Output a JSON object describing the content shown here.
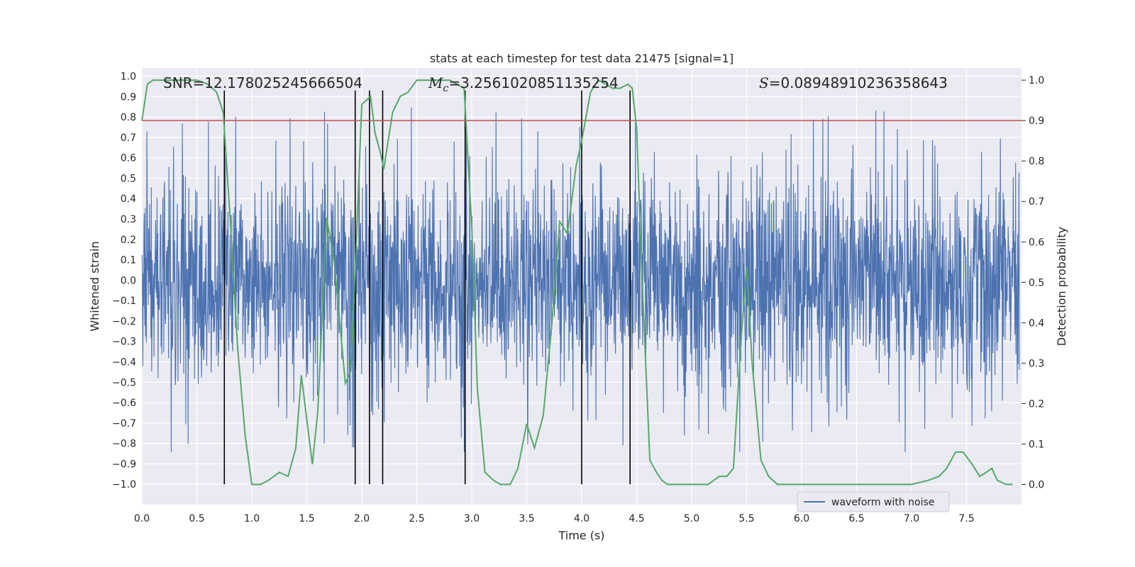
{
  "chart_data": {
    "type": "line",
    "title": "stats at each timestep for test data 21475 [signal=1]",
    "xlabel": "Time (s)",
    "ylabel_left": "Whitened strain",
    "ylabel_right": "Detection probability",
    "xlim": [
      0.0,
      8.0
    ],
    "ylim_left": [
      -1.1,
      1.04
    ],
    "ylim_right": [
      -0.05,
      1.03
    ],
    "x_ticks": [
      0.0,
      0.5,
      1.0,
      1.5,
      2.0,
      2.5,
      3.0,
      3.5,
      4.0,
      4.5,
      5.0,
      5.5,
      6.0,
      6.5,
      7.0,
      7.5
    ],
    "x_tick_labels": [
      "0.0",
      "0.5",
      "1.0",
      "1.5",
      "2.0",
      "2.5",
      "3.0",
      "3.5",
      "4.0",
      "4.5",
      "5.0",
      "5.5",
      "6.0",
      "6.5",
      "7.0",
      "7.5"
    ],
    "y_ticks_left": [
      1.0,
      0.9,
      0.8,
      0.7,
      0.6,
      0.5,
      0.4,
      0.3,
      0.2,
      0.1,
      0.0,
      -0.1,
      -0.2,
      -0.3,
      -0.4,
      -0.5,
      -0.6,
      -0.7,
      -0.8,
      -0.9,
      -1.0
    ],
    "y_tick_labels_left": [
      "1.0",
      "0.9",
      "0.8",
      "0.7",
      "0.6",
      "0.5",
      "0.4",
      "0.3",
      "0.2",
      "0.1",
      "0.0",
      "−0.1",
      "−0.2",
      "−0.3",
      "−0.4",
      "−0.5",
      "−0.6",
      "−0.7",
      "−0.8",
      "−0.9",
      "−1.0"
    ],
    "y_ticks_right": [
      1.0,
      0.9,
      0.8,
      0.7,
      0.6,
      0.5,
      0.4,
      0.3,
      0.2,
      0.1,
      0.0
    ],
    "y_tick_labels_right": [
      "1.0",
      "0.9",
      "0.8",
      "0.7",
      "0.6",
      "0.5",
      "0.4",
      "0.3",
      "0.2",
      "0.1",
      "0.0"
    ],
    "annotations": {
      "snr": "SNR=12.178025245666504",
      "mc_symbol": "M",
      "mc_sub": "c",
      "mc_value": "=3.2561020851135254",
      "s_symbol": "S",
      "s_value": "=0.08948910236358643"
    },
    "legend": {
      "entries": [
        "waveform with noise"
      ],
      "location": "lower-center-right"
    },
    "series": [
      {
        "name": "waveform with noise",
        "axis": "left",
        "color": "#4c72b0",
        "description": "noisy whitened strain, roughly uniform envelope about ±0.35, peaks to about ±0.85",
        "envelope_typical": 0.38,
        "envelope_peak": 0.85,
        "samples_approx": 8192
      },
      {
        "name": "detection probability",
        "axis": "right",
        "color": "#55a868",
        "x": [
          0.0,
          0.05,
          0.1,
          0.2,
          0.3,
          0.4,
          0.5,
          0.6,
          0.68,
          0.74,
          0.8,
          0.87,
          0.94,
          1.0,
          1.08,
          1.15,
          1.25,
          1.33,
          1.4,
          1.45,
          1.55,
          1.6,
          1.68,
          1.75,
          1.85,
          1.9,
          1.95,
          2.0,
          2.08,
          2.12,
          2.17,
          2.2,
          2.28,
          2.35,
          2.42,
          2.5,
          2.6,
          2.7,
          2.8,
          2.93,
          3.0,
          3.05,
          3.12,
          3.2,
          3.26,
          3.3,
          3.35,
          3.42,
          3.5,
          3.57,
          3.65,
          3.73,
          3.8,
          3.87,
          3.95,
          4.0,
          4.08,
          4.15,
          4.22,
          4.28,
          4.35,
          4.42,
          4.46,
          4.5,
          4.55,
          4.62,
          4.68,
          4.73,
          4.78,
          4.85,
          4.95,
          5.05,
          5.15,
          5.25,
          5.32,
          5.38,
          5.45,
          5.5,
          5.55,
          5.63,
          5.7,
          5.78,
          5.9,
          6.0,
          6.2,
          6.4,
          6.6,
          6.8,
          7.0,
          7.15,
          7.25,
          7.32,
          7.4,
          7.47,
          7.55,
          7.62,
          7.68,
          7.73,
          7.78,
          7.86,
          7.92
        ],
        "y": [
          0.9,
          0.99,
          1.0,
          1.0,
          1.0,
          1.0,
          1.0,
          0.99,
          0.97,
          0.92,
          0.67,
          0.34,
          0.12,
          0.0,
          0.0,
          0.01,
          0.03,
          0.02,
          0.09,
          0.27,
          0.05,
          0.18,
          0.66,
          0.55,
          0.25,
          0.28,
          0.6,
          0.94,
          0.96,
          0.87,
          0.82,
          0.78,
          0.92,
          0.96,
          0.97,
          1.0,
          1.0,
          1.0,
          1.0,
          0.98,
          0.64,
          0.24,
          0.03,
          0.01,
          0.0,
          0.0,
          0.0,
          0.04,
          0.15,
          0.09,
          0.17,
          0.4,
          0.65,
          0.62,
          0.79,
          0.85,
          0.97,
          1.0,
          0.99,
          0.98,
          0.98,
          0.99,
          0.98,
          0.88,
          0.5,
          0.06,
          0.03,
          0.01,
          0.0,
          0.0,
          0.0,
          0.0,
          0.0,
          0.02,
          0.02,
          0.04,
          0.36,
          0.54,
          0.3,
          0.06,
          0.02,
          0.0,
          0.0,
          0.0,
          0.0,
          0.0,
          0.0,
          0.0,
          0.0,
          0.01,
          0.02,
          0.04,
          0.08,
          0.08,
          0.05,
          0.02,
          0.03,
          0.04,
          0.01,
          0.0,
          0.0
        ]
      },
      {
        "name": "threshold",
        "axis": "right",
        "color": "#c44e52",
        "y": 0.9
      },
      {
        "name": "event markers",
        "axis": "left",
        "color": "#000000",
        "x": [
          0.75,
          1.94,
          2.07,
          2.19,
          2.94,
          4.0,
          4.44
        ],
        "y_range": [
          -1.0,
          0.93
        ]
      }
    ]
  }
}
